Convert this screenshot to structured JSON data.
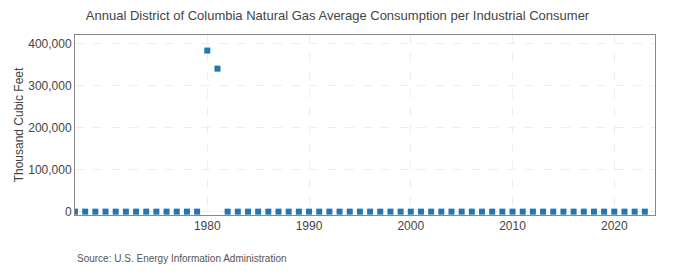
{
  "chart_data": {
    "type": "scatter",
    "title": "Annual District of Columbia Natural Gas Average Consumption per Industrial Consumer",
    "ylabel": "Thousand Cubic Feet",
    "annotations": [
      "Source: U.S. Energy Information Administration"
    ],
    "x": [
      1967,
      1968,
      1969,
      1970,
      1971,
      1972,
      1973,
      1974,
      1975,
      1976,
      1977,
      1978,
      1979,
      1980,
      1981,
      1982,
      1983,
      1984,
      1985,
      1986,
      1987,
      1988,
      1989,
      1990,
      1991,
      1992,
      1993,
      1994,
      1995,
      1996,
      1997,
      1998,
      1999,
      2000,
      2001,
      2002,
      2003,
      2004,
      2005,
      2006,
      2007,
      2008,
      2009,
      2010,
      2011,
      2012,
      2013,
      2014,
      2015,
      2016,
      2017,
      2018,
      2019,
      2020,
      2021,
      2022,
      2023
    ],
    "values": [
      0,
      0,
      0,
      0,
      0,
      0,
      0,
      0,
      0,
      0,
      0,
      0,
      0,
      383000,
      340000,
      0,
      0,
      0,
      0,
      0,
      0,
      0,
      0,
      0,
      0,
      0,
      0,
      0,
      0,
      0,
      0,
      0,
      0,
      0,
      0,
      0,
      0,
      0,
      0,
      0,
      0,
      0,
      0,
      0,
      0,
      0,
      0,
      0,
      0,
      0,
      0,
      0,
      0,
      0,
      0,
      0,
      0
    ],
    "xlim": [
      1967,
      2024
    ],
    "ylim": [
      -8000,
      420000
    ],
    "xticks": [
      1980,
      1990,
      2000,
      2010,
      2020
    ],
    "yticks": [
      0,
      {
        "value": 100000,
        "label": "100,000"
      },
      {
        "value": 200000,
        "label": "200,000"
      },
      {
        "value": 300000,
        "label": "300,000"
      },
      {
        "value": 400000,
        "label": "400,000"
      }
    ],
    "grid": true,
    "marker": "square"
  }
}
